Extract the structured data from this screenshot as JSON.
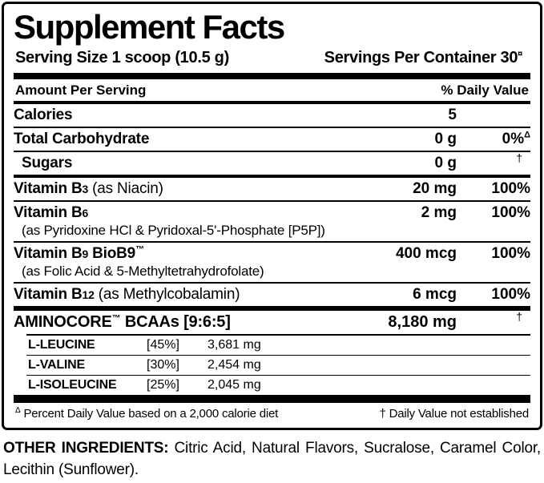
{
  "supplement_facts": {
    "title": "Supplement Facts",
    "serving_size": "Serving Size 1 scoop (10.5 g)",
    "servings_per_container": "Servings Per Container 30",
    "servings_sup": "¤",
    "columns": {
      "amount_header": "Amount Per Serving",
      "dv_header": "% Daily Value"
    },
    "rows": [
      {
        "name": "Calories",
        "amount": "5",
        "dv": "",
        "dvsup": ""
      },
      {
        "name": "Total Carbohydrate",
        "amount": "0 g",
        "dv": "0%",
        "dvsup": "Δ"
      },
      {
        "name": "Sugars",
        "amount": "0 g",
        "dv": "",
        "dvsup": "†"
      },
      {
        "name": "Vitamin B",
        "sub": "3",
        "rest": " (as Niacin)",
        "amount": "20 mg",
        "dv": "100%"
      },
      {
        "name": "Vitamin B",
        "sub": "6",
        "line2": "(as Pyridoxine HCl & Pyridoxal-5'-Phosphate [P5P])",
        "amount": "2 mg",
        "dv": "100%"
      },
      {
        "name": "Vitamin B",
        "sub": "9",
        "name2": " BioB9",
        "tm": "™",
        "line2": "(as Folic Acid & 5-Methyltetrahydrofolate)",
        "amount": "400 mcg",
        "dv": "100%"
      },
      {
        "name": "Vitamin B",
        "sub": "12",
        "rest": " (as Methylcobalamin)",
        "amount": "6 mcg",
        "dv": "100%"
      },
      {
        "name": "AMINOCORE",
        "tm": "™",
        "name2": " BCAAs [9:6:5]",
        "amount": "8,180 mg",
        "dv": "",
        "dvsup": "†"
      }
    ],
    "amino_rows": [
      {
        "name": "L-LEUCINE",
        "pct": "[45%]",
        "amount": "3,681 mg"
      },
      {
        "name": "L-VALINE",
        "pct": "[30%]",
        "amount": "2,454 mg"
      },
      {
        "name": "L-ISOLEUCINE",
        "pct": "[25%]",
        "amount": "2,045 mg"
      }
    ],
    "footnote_left_sup": "Δ",
    "footnote_left": " Percent Daily Value based on a 2,000 calorie diet",
    "footnote_right": "† Daily Value not established"
  },
  "other_ingredients": {
    "label": "OTHER INGREDIENTS:",
    "text": " Citric Acid, Natural Flavors, Sucralose, Caramel Color, Lecithin (Sunflower)."
  }
}
